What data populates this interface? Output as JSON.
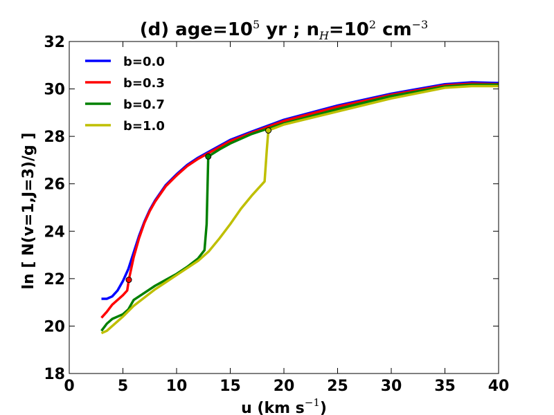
{
  "chart_data": {
    "type": "line",
    "title": {
      "prefix": "(d) age=10",
      "age_exp": "5",
      "mid": " yr ; n",
      "n_sub": "H",
      "eq": "=10",
      "n_exp": "2",
      "unit": " cm",
      "unit_exp": "−3"
    },
    "xlabel": {
      "text": "u (km s",
      "exp": "−1",
      "close": ")"
    },
    "ylabel": "ln [ N(v=1,J=3)/g ]",
    "xlim": [
      0,
      40
    ],
    "ylim": [
      18,
      32
    ],
    "x_ticks": [
      "0",
      "5",
      "10",
      "15",
      "20",
      "25",
      "30",
      "35",
      "40"
    ],
    "y_ticks": [
      "18",
      "20",
      "22",
      "24",
      "26",
      "28",
      "30",
      "32"
    ],
    "legend_position": "top-left",
    "series": [
      {
        "name": "b=0.0",
        "color": "#0000ff",
        "points": [
          [
            3.0,
            21.15
          ],
          [
            3.5,
            21.15
          ],
          [
            4.0,
            21.25
          ],
          [
            4.5,
            21.5
          ],
          [
            5.0,
            21.9
          ],
          [
            5.5,
            22.4
          ],
          [
            6.0,
            23.1
          ],
          [
            6.5,
            23.8
          ],
          [
            7.0,
            24.4
          ],
          [
            7.5,
            24.9
          ],
          [
            8.0,
            25.3
          ],
          [
            9.0,
            25.95
          ],
          [
            10.0,
            26.4
          ],
          [
            11.0,
            26.8
          ],
          [
            12.0,
            27.1
          ],
          [
            13.0,
            27.35
          ],
          [
            15.0,
            27.85
          ],
          [
            17.0,
            28.2
          ],
          [
            20.0,
            28.7
          ],
          [
            25.0,
            29.3
          ],
          [
            30.0,
            29.8
          ],
          [
            35.0,
            30.2
          ],
          [
            37.5,
            30.28
          ],
          [
            40.0,
            30.25
          ]
        ],
        "markers": []
      },
      {
        "name": "b=0.3",
        "color": "#ff0000",
        "points": [
          [
            3.0,
            20.35
          ],
          [
            3.5,
            20.6
          ],
          [
            4.0,
            20.9
          ],
          [
            4.5,
            21.1
          ],
          [
            5.0,
            21.3
          ],
          [
            5.4,
            21.5
          ],
          [
            5.55,
            21.95
          ],
          [
            6.0,
            22.9
          ],
          [
            6.5,
            23.7
          ],
          [
            7.0,
            24.35
          ],
          [
            7.5,
            24.85
          ],
          [
            8.0,
            25.25
          ],
          [
            9.0,
            25.9
          ],
          [
            10.0,
            26.35
          ],
          [
            11.0,
            26.75
          ],
          [
            12.0,
            27.05
          ],
          [
            13.0,
            27.3
          ],
          [
            15.0,
            27.8
          ],
          [
            17.0,
            28.15
          ],
          [
            20.0,
            28.65
          ],
          [
            25.0,
            29.25
          ],
          [
            30.0,
            29.75
          ],
          [
            35.0,
            30.15
          ],
          [
            37.5,
            30.22
          ],
          [
            40.0,
            30.2
          ]
        ],
        "markers": [
          [
            5.55,
            21.95
          ]
        ]
      },
      {
        "name": "b=0.7",
        "color": "#008000",
        "points": [
          [
            3.0,
            19.8
          ],
          [
            3.5,
            20.1
          ],
          [
            4.0,
            20.3
          ],
          [
            5.0,
            20.5
          ],
          [
            5.5,
            20.7
          ],
          [
            6.0,
            21.1
          ],
          [
            7.0,
            21.4
          ],
          [
            8.0,
            21.7
          ],
          [
            9.0,
            21.95
          ],
          [
            10.0,
            22.2
          ],
          [
            11.0,
            22.5
          ],
          [
            12.0,
            22.85
          ],
          [
            12.6,
            23.2
          ],
          [
            12.8,
            24.3
          ],
          [
            12.95,
            27.15
          ],
          [
            14.0,
            27.45
          ],
          [
            15.0,
            27.7
          ],
          [
            17.0,
            28.1
          ],
          [
            20.0,
            28.55
          ],
          [
            25.0,
            29.15
          ],
          [
            30.0,
            29.7
          ],
          [
            35.0,
            30.1
          ],
          [
            37.5,
            30.18
          ],
          [
            40.0,
            30.18
          ]
        ],
        "markers": [
          [
            12.95,
            27.15
          ]
        ]
      },
      {
        "name": "b=1.0",
        "color": "#bfbf00",
        "points": [
          [
            3.0,
            19.7
          ],
          [
            3.5,
            19.8
          ],
          [
            4.0,
            20.0
          ],
          [
            5.0,
            20.4
          ],
          [
            6.0,
            20.85
          ],
          [
            7.0,
            21.2
          ],
          [
            8.0,
            21.55
          ],
          [
            9.0,
            21.85
          ],
          [
            10.0,
            22.15
          ],
          [
            11.0,
            22.45
          ],
          [
            12.0,
            22.75
          ],
          [
            13.0,
            23.15
          ],
          [
            14.0,
            23.7
          ],
          [
            15.0,
            24.3
          ],
          [
            16.0,
            24.95
          ],
          [
            17.0,
            25.5
          ],
          [
            18.2,
            26.1
          ],
          [
            18.4,
            27.4
          ],
          [
            18.55,
            28.25
          ],
          [
            20.0,
            28.5
          ],
          [
            25.0,
            29.05
          ],
          [
            30.0,
            29.6
          ],
          [
            35.0,
            30.05
          ],
          [
            37.5,
            30.12
          ],
          [
            40.0,
            30.12
          ]
        ],
        "markers": [
          [
            18.55,
            28.25
          ]
        ]
      }
    ]
  }
}
